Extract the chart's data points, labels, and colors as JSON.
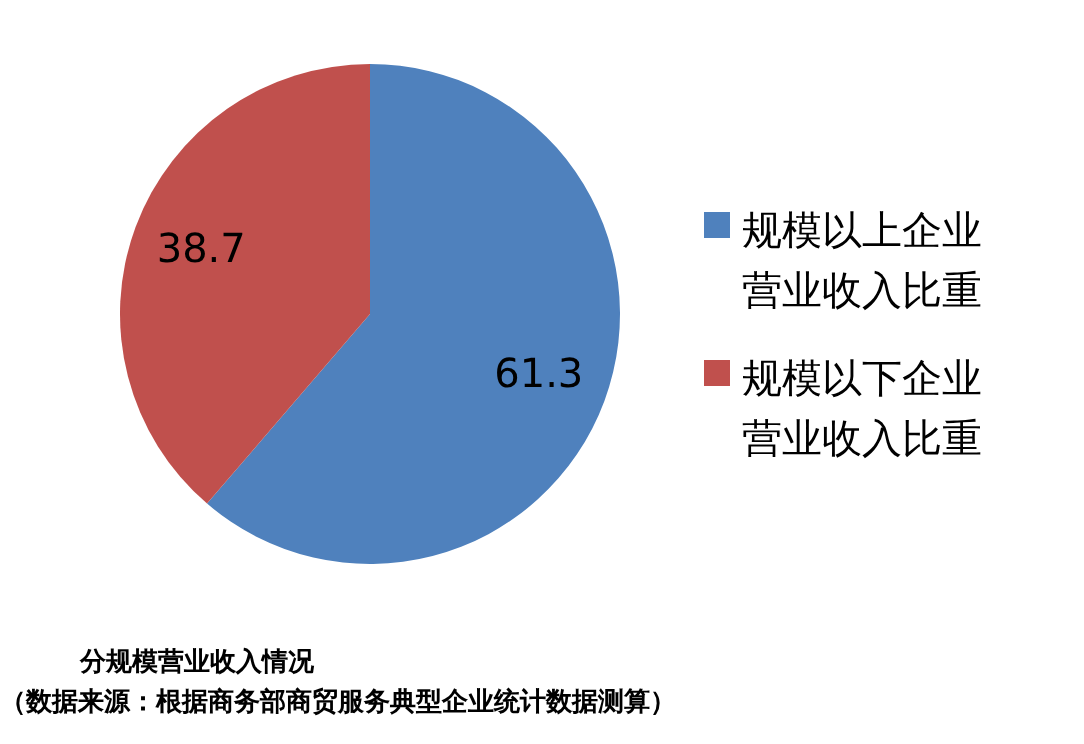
{
  "chart_data": {
    "type": "pie",
    "categories": [
      "规模以上企业营业收入比重",
      "规模以下企业营业收入比重"
    ],
    "values": [
      61.3,
      38.7
    ],
    "colors": [
      "#4f81bd",
      "#c0504d"
    ],
    "data_labels": true,
    "legend": "right",
    "annotations": [
      "分规模营业收入情况",
      "（数据来源：根据商务部商贸服务典型企业统计数据测算）"
    ]
  }
}
